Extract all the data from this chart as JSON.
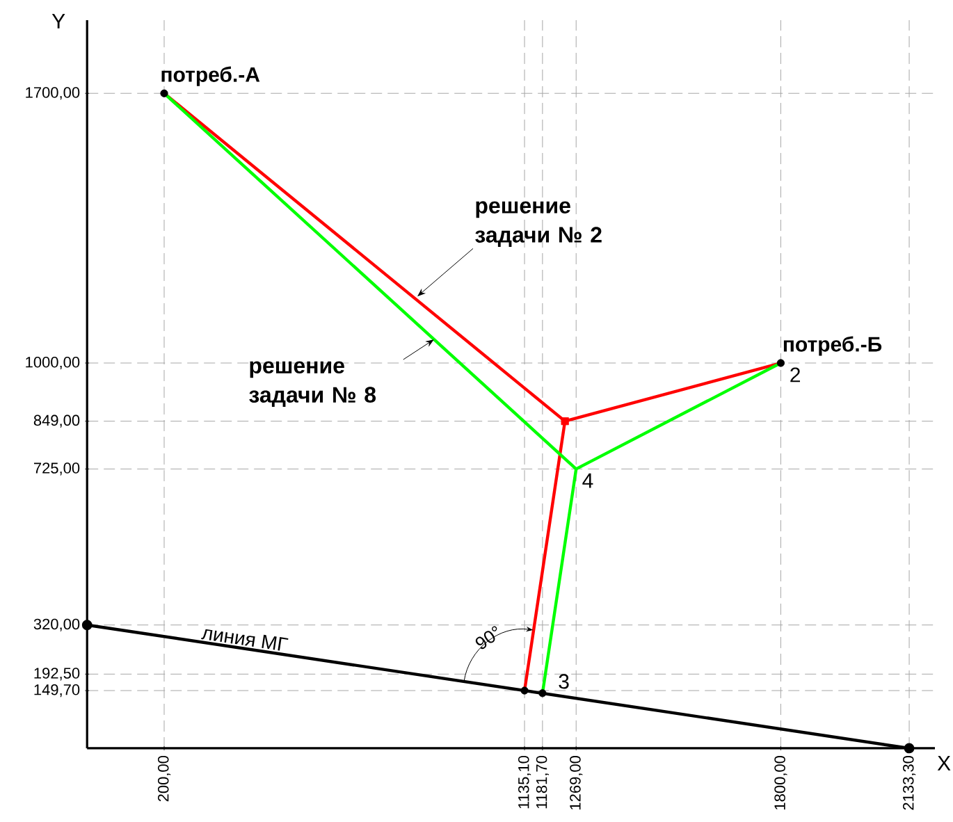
{
  "chart_data": {
    "type": "line",
    "xlabel": "X",
    "ylabel": "Y",
    "xlim": [
      0,
      2200
    ],
    "ylim": [
      0,
      1890
    ],
    "xticks": [
      {
        "value": 200,
        "label": "200,00"
      },
      {
        "value": 1135.1,
        "label": "1135,10"
      },
      {
        "value": 1181.7,
        "label": "1181,70"
      },
      {
        "value": 1269,
        "label": "1269,00"
      },
      {
        "value": 1800,
        "label": "1800,00"
      },
      {
        "value": 2133.3,
        "label": "2133,30"
      }
    ],
    "yticks": [
      {
        "value": 149.7,
        "label": "149,70"
      },
      {
        "value": 192.5,
        "label": "192,50"
      },
      {
        "value": 320,
        "label": "320,00"
      },
      {
        "value": 725,
        "label": "725,00"
      },
      {
        "value": 849,
        "label": "849,00"
      },
      {
        "value": 1000,
        "label": "1000,00"
      },
      {
        "value": 1700,
        "label": "1700,00"
      }
    ],
    "grid": true,
    "series": [
      {
        "color": "#000000",
        "marker": "circle",
        "x": [
          0,
          2133.3
        ],
        "values": [
          320,
          0
        ]
      },
      {
        "color": "#ff0000",
        "x": [
          200,
          1240,
          1800
        ],
        "values": [
          1700,
          849,
          1000
        ]
      },
      {
        "color": "#ff0000",
        "x": [
          1240,
          1135.1
        ],
        "values": [
          849,
          149.7
        ]
      },
      {
        "color": "#00ff00",
        "x": [
          200,
          1269,
          1800
        ],
        "values": [
          1700,
          725,
          1000
        ]
      },
      {
        "color": "#00ff00",
        "x": [
          1269,
          1181.7
        ],
        "values": [
          725,
          143
        ]
      },
      {
        "type": "scatter",
        "color": "#000000",
        "marker": "circle",
        "x": [
          200,
          1800,
          1135.1,
          1181.7
        ],
        "values": [
          1700,
          1000,
          149.7,
          143
        ]
      },
      {
        "type": "scatter",
        "color": "#ff0000",
        "marker": "square",
        "x": [
          1240
        ],
        "values": [
          849
        ]
      }
    ],
    "annotations": [
      {
        "text": "потреб.-А",
        "x": 200,
        "y": 1700
      },
      {
        "text": "потреб.-Б",
        "x": 1800,
        "y": 1000
      },
      {
        "text": "2",
        "x": 1800,
        "y": 1000
      },
      {
        "text": "4",
        "x": 1269,
        "y": 725
      },
      {
        "text": "3",
        "x": 1181.7,
        "y": 142.7
      },
      {
        "text": "90°",
        "x": 1135.1,
        "y": 149.7
      },
      {
        "text": "линия МГ",
        "x": 406,
        "y": 259
      },
      {
        "text": "решение задачи № 2",
        "x": 857,
        "y": 1173
      },
      {
        "text": "решение задачи № 8",
        "x": 900,
        "y": 1061
      }
    ]
  }
}
